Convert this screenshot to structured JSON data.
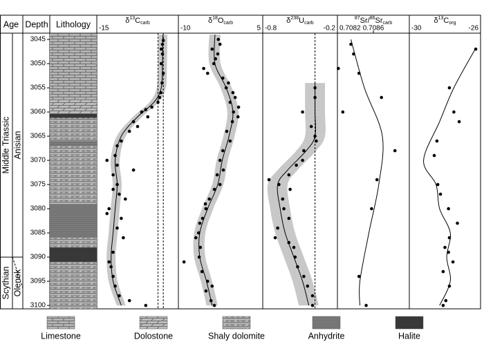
{
  "headers": {
    "age": "Age",
    "depth": "Depth",
    "lithology": "Lithology"
  },
  "depth_axis": {
    "ylim": [
      3043.7,
      3100.7
    ],
    "yticks": [
      3045,
      3050,
      3055,
      3060,
      3065,
      3070,
      3075,
      3080,
      3085,
      3090,
      3095,
      3100
    ]
  },
  "ages": {
    "eras": [
      {
        "label": "Middle Triassic",
        "top": 3043.7,
        "base": 3090
      },
      {
        "label": "Scythian",
        "top": 3090,
        "base": 3100.7
      }
    ],
    "stages": [
      {
        "label": "Anisian",
        "top": 3043.7,
        "base": 3090
      },
      {
        "label": "Olenek",
        "top": 3090,
        "base": 3100.7
      }
    ]
  },
  "lithology": {
    "legend": [
      "Limestone",
      "Dolostone",
      "Shaly dolomite",
      "Anhydrite",
      "Halite"
    ],
    "units": [
      {
        "top": 3043.7,
        "base": 3057.5,
        "kind": 0
      },
      {
        "top": 3057.5,
        "base": 3060.4,
        "kind": 1
      },
      {
        "top": 3060.4,
        "base": 3061.2,
        "kind": 4
      },
      {
        "top": 3061.2,
        "base": 3066,
        "kind": 2
      },
      {
        "top": 3066,
        "base": 3067,
        "kind": 3
      },
      {
        "top": 3067,
        "base": 3079,
        "kind": 2
      },
      {
        "top": 3079,
        "base": 3086,
        "kind": 3
      },
      {
        "top": 3086,
        "base": 3088,
        "kind": 2
      },
      {
        "top": 3088,
        "base": 3091,
        "kind": 4
      },
      {
        "top": 3091,
        "base": 3100.7,
        "kind": 2
      }
    ]
  },
  "chart_data": [
    {
      "type": "scatter",
      "title_parts": [
        {
          "t": "δ"
        },
        {
          "t": "13",
          "sup": true
        },
        {
          "t": "C"
        },
        {
          "t": "carb",
          "sub": true
        }
      ],
      "xlim": [
        -15,
        5
      ],
      "xticks": [
        -15
      ],
      "band_halfwidth": 1.1,
      "reference_lines": [
        0,
        1.3
      ],
      "points": {
        "depth": [
          3045.2,
          3046,
          3047,
          3048,
          3050,
          3052,
          3054,
          3056,
          3057,
          3058,
          3059,
          3059.5,
          3060,
          3061,
          3062,
          3063,
          3064,
          3066,
          3067,
          3069,
          3070,
          3071,
          3072,
          3073,
          3075,
          3076,
          3077,
          3078,
          3080,
          3081,
          3082,
          3084,
          3086,
          3089,
          3091,
          3092,
          3094,
          3096,
          3098,
          3099,
          3100
        ],
        "values": [
          1.3,
          1.1,
          0.8,
          1.1,
          0.8,
          1.3,
          1.0,
          0.7,
          0.4,
          0,
          -1.5,
          -3,
          -4,
          -2.5,
          -6,
          -5,
          -7,
          -9,
          -10,
          -10.5,
          -12.5,
          -10,
          -6,
          -11,
          -10,
          -11,
          -9.5,
          -8,
          -12,
          -12.5,
          -9,
          -10,
          -8.5,
          -11,
          -12,
          -11.5,
          -11,
          -10.5,
          -9.5,
          -7,
          -3
        ]
      },
      "trend": {
        "depth": [
          3044,
          3050,
          3055,
          3058,
          3061,
          3065,
          3070,
          3075,
          3080,
          3085,
          3090,
          3095,
          3100
        ],
        "values": [
          1.2,
          1.1,
          0.8,
          -1,
          -5,
          -9,
          -10.5,
          -10,
          -10.5,
          -11,
          -11.5,
          -11,
          -9
        ]
      }
    },
    {
      "type": "scatter",
      "title_parts": [
        {
          "t": "δ"
        },
        {
          "t": "18",
          "sup": true
        },
        {
          "t": "O"
        },
        {
          "t": "carb",
          "sub": true
        }
      ],
      "xlim": [
        -10,
        5
      ],
      "xticks": [
        -10,
        5
      ],
      "band_halfwidth": 1.0,
      "reference_lines": [],
      "points": {
        "depth": [
          3045,
          3046,
          3047,
          3048,
          3049,
          3050,
          3051,
          3052,
          3053,
          3054,
          3055,
          3056,
          3057,
          3058,
          3059,
          3060,
          3061,
          3062,
          3064,
          3066,
          3068,
          3070,
          3072,
          3073,
          3075,
          3076,
          3078,
          3079,
          3080,
          3082,
          3083,
          3085,
          3086,
          3088,
          3090,
          3091,
          3093,
          3095,
          3096,
          3097,
          3099,
          3100
        ],
        "values": [
          -2.9,
          -2.6,
          -4,
          -3,
          -3.4,
          -3.7,
          -5.5,
          -4.8,
          -2.1,
          -1.1,
          -1.5,
          -0.3,
          0.1,
          -0.8,
          0.7,
          -0.2,
          0.6,
          -0.4,
          -1.4,
          -0.8,
          -2.1,
          -2.6,
          -2,
          -3.1,
          -2.6,
          -3.6,
          -4.5,
          -5.2,
          -5.1,
          -5.7,
          -6.2,
          -6.4,
          -6.9,
          -6.1,
          -6.3,
          -9,
          -5.8,
          -4.8,
          -4,
          -5.1,
          -4.2,
          -3.6
        ]
      },
      "trend": {
        "depth": [
          3044,
          3050,
          3055,
          3060,
          3065,
          3070,
          3075,
          3080,
          3085,
          3090,
          3095,
          3100
        ],
        "values": [
          -3.5,
          -3.5,
          -1.5,
          -0.3,
          -1,
          -2.2,
          -3,
          -4.8,
          -6.2,
          -6.2,
          -5,
          -4
        ]
      }
    },
    {
      "type": "scatter",
      "title_parts": [
        {
          "t": "δ"
        },
        {
          "t": "238",
          "sup": true
        },
        {
          "t": "U"
        },
        {
          "t": "carb",
          "sub": true
        }
      ],
      "xlim": [
        -0.8,
        -0.2
      ],
      "xticks": [
        -0.8,
        -0.2
      ],
      "band_halfwidth": 0.08,
      "reference_lines": [
        -0.38
      ],
      "points": {
        "depth": [
          3055,
          3057,
          3060,
          3063,
          3065,
          3066,
          3068,
          3070,
          3071,
          3073,
          3074,
          3075,
          3076,
          3078,
          3080,
          3082,
          3084,
          3086,
          3087,
          3088,
          3090,
          3092,
          3094,
          3096,
          3098,
          3100
        ],
        "values": [
          -0.38,
          -0.38,
          -0.48,
          -0.41,
          -0.38,
          -0.37,
          -0.47,
          -0.48,
          -0.53,
          -0.59,
          -0.75,
          -0.67,
          -0.58,
          -0.64,
          -0.63,
          -0.59,
          -0.68,
          -0.7,
          -0.59,
          -0.55,
          -0.54,
          -0.52,
          -0.47,
          -0.44,
          -0.4,
          -0.4
        ]
      },
      "trend": {
        "depth": [
          3054,
          3060,
          3065,
          3068,
          3072,
          3075,
          3080,
          3085,
          3090,
          3095,
          3100
        ],
        "values": [
          -0.38,
          -0.38,
          -0.38,
          -0.45,
          -0.6,
          -0.68,
          -0.66,
          -0.62,
          -0.55,
          -0.48,
          -0.43
        ]
      }
    },
    {
      "type": "scatter",
      "title_parts": [
        {
          "t": "87",
          "sup": true
        },
        {
          "t": "Sr/"
        },
        {
          "t": "86",
          "sup": true
        },
        {
          "t": "Sr"
        },
        {
          "t": "carb",
          "sub": true
        }
      ],
      "xlim": [
        0.7082,
        0.709
      ],
      "xticks": [
        0.7082,
        0.7086
      ],
      "band_halfwidth": 0,
      "reference_lines": [],
      "points": {
        "depth": [
          3046,
          3048,
          3051,
          3052,
          3057,
          3060,
          3068,
          3074,
          3080,
          3094,
          3100
        ],
        "values": [
          0.70835,
          0.70838,
          0.70821,
          0.70844,
          0.70869,
          0.70826,
          0.70884,
          0.70864,
          0.70858,
          0.70844,
          0.70852
        ]
      },
      "trend": {
        "depth": [
          3045,
          3055,
          3065,
          3075,
          3085,
          3095,
          3100
        ],
        "values": [
          0.70835,
          0.7085,
          0.7087,
          0.70866,
          0.70855,
          0.70845,
          0.70845
        ]
      }
    },
    {
      "type": "scatter",
      "title_parts": [
        {
          "t": "δ"
        },
        {
          "t": "13",
          "sup": true
        },
        {
          "t": "C"
        },
        {
          "t": "org",
          "sub": true
        }
      ],
      "xlim": [
        -30,
        -26
      ],
      "xticks": [
        -30,
        -26
      ],
      "band_halfwidth": 0,
      "reference_lines": [],
      "points": {
        "depth": [
          3047,
          3055,
          3060,
          3062,
          3066,
          3069,
          3075,
          3077,
          3080,
          3083,
          3086,
          3088,
          3089,
          3091,
          3093,
          3096,
          3099,
          3100
        ],
        "values": [
          -26.27,
          -27.75,
          -27.5,
          -27.2,
          -28.45,
          -28.6,
          -28.4,
          -28.25,
          -27.8,
          -27.3,
          -27.75,
          -28,
          -27.8,
          -27.55,
          -28.1,
          -27.75,
          -27.95,
          -28.1
        ]
      },
      "trend": {
        "depth": [
          3047,
          3055,
          3062,
          3070,
          3075,
          3080,
          3085,
          3090,
          3095,
          3100
        ],
        "values": [
          -26.3,
          -27.5,
          -28.3,
          -29.2,
          -28.5,
          -28.3,
          -27.7,
          -27.9,
          -27.7,
          -28.3
        ]
      }
    }
  ]
}
